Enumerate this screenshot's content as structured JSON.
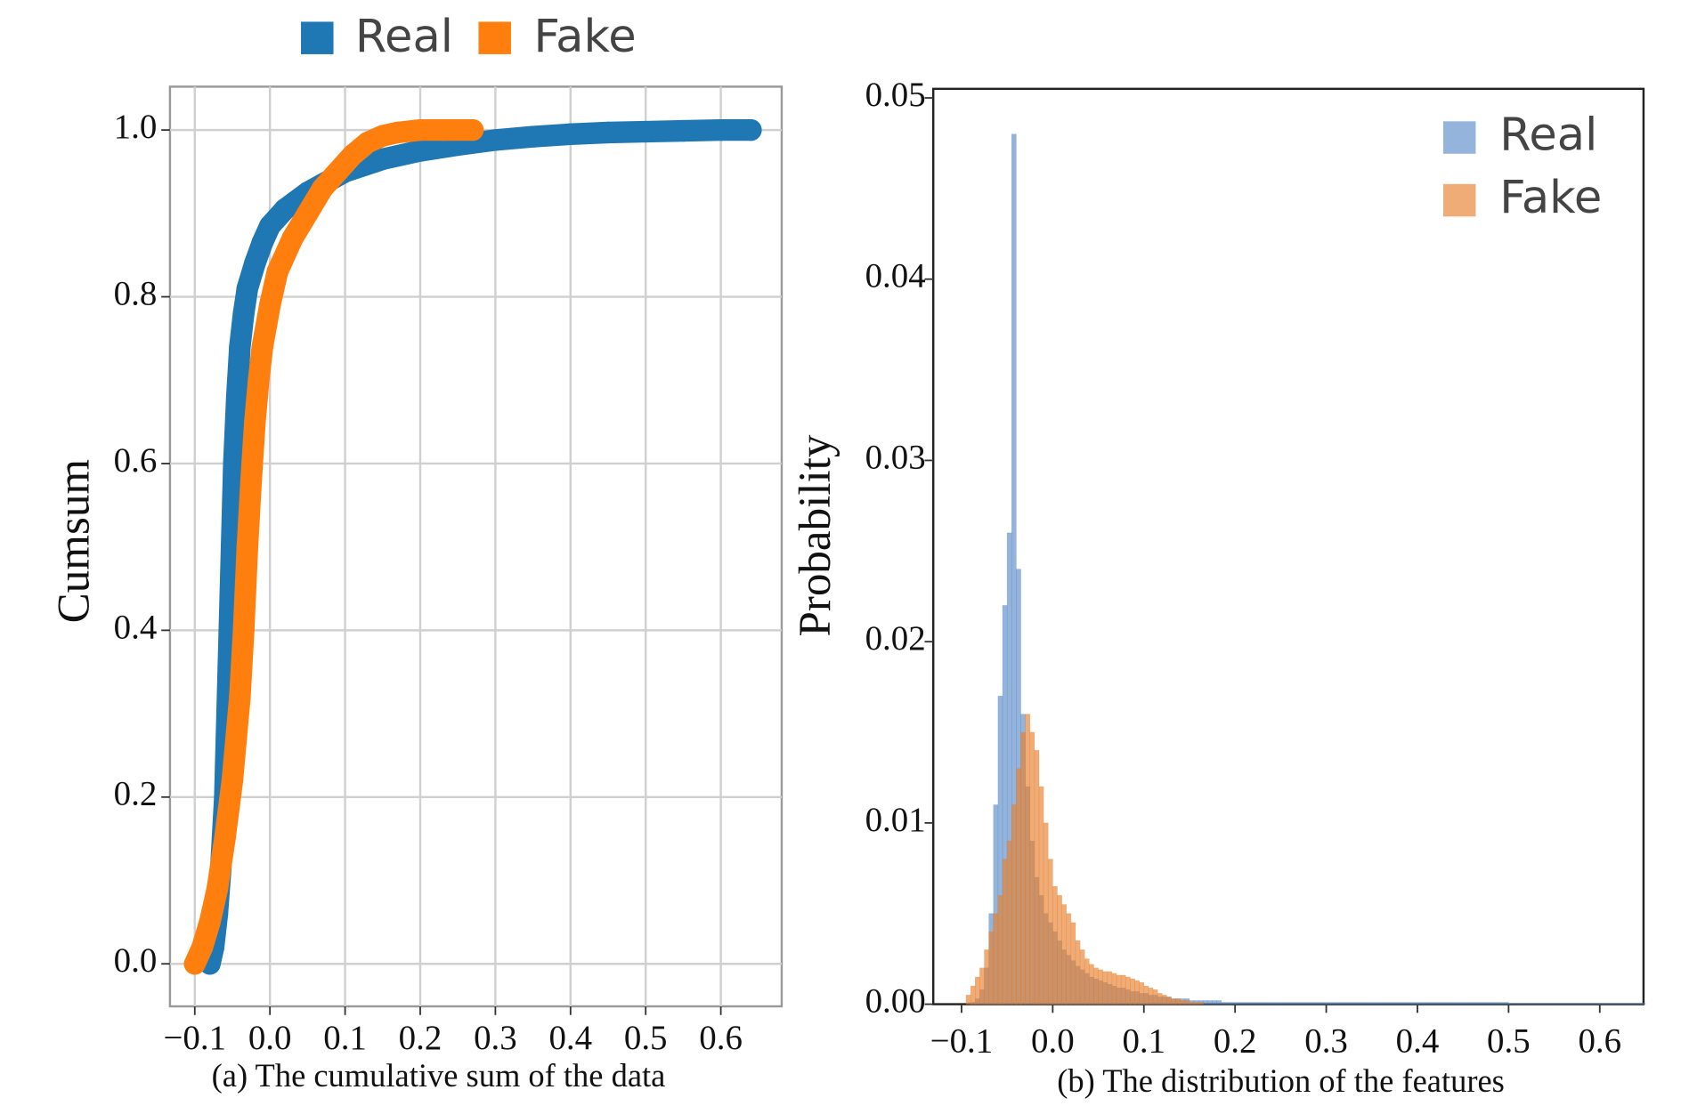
{
  "chart_data": [
    {
      "type": "scatter",
      "y_label": "Cumsum",
      "caption": "(a) The cumulative sum of the data",
      "xlim": [
        -0.133,
        0.681
      ],
      "ylim": [
        -0.051,
        1.052
      ],
      "xticks": [
        {
          "value": -0.1,
          "label": "−0.1"
        },
        {
          "value": 0,
          "label": "0.0"
        },
        0.1,
        0.2,
        0.3,
        0.4,
        0.5,
        0.6
      ],
      "yticks": [
        {
          "value": 0,
          "label": "0.0"
        },
        0.2,
        0.4,
        0.6,
        0.8,
        {
          "value": 1,
          "label": "1.0"
        }
      ],
      "grid": true,
      "legend": "top",
      "series": [
        {
          "name": "Real",
          "color": "#1f77b4",
          "x": [
            -0.08,
            -0.075,
            -0.07,
            -0.065,
            -0.06,
            -0.057,
            -0.054,
            -0.051,
            -0.048,
            -0.044,
            -0.04,
            -0.035,
            -0.03,
            -0.02,
            -0.01,
            0,
            0.02,
            0.05,
            0.08,
            0.1,
            0.15,
            0.2,
            0.25,
            0.3,
            0.35,
            0.4,
            0.45,
            0.5,
            0.55,
            0.6,
            0.64
          ],
          "values": [
            0,
            0.02,
            0.06,
            0.12,
            0.2,
            0.3,
            0.4,
            0.5,
            0.6,
            0.68,
            0.74,
            0.78,
            0.81,
            0.84,
            0.865,
            0.885,
            0.905,
            0.925,
            0.94,
            0.95,
            0.965,
            0.975,
            0.982,
            0.988,
            0.992,
            0.995,
            0.997,
            0.998,
            0.999,
            1,
            1
          ]
        },
        {
          "name": "Fake",
          "color": "#ff7f0e",
          "x": [
            -0.1,
            -0.09,
            -0.08,
            -0.07,
            -0.06,
            -0.05,
            -0.04,
            -0.035,
            -0.03,
            -0.025,
            -0.02,
            -0.015,
            -0.01,
            0,
            0.01,
            0.03,
            0.05,
            0.07,
            0.09,
            0.11,
            0.13,
            0.15,
            0.17,
            0.2,
            0.23,
            0.27
          ],
          "values": [
            0,
            0.02,
            0.05,
            0.09,
            0.15,
            0.22,
            0.32,
            0.4,
            0.5,
            0.58,
            0.65,
            0.7,
            0.74,
            0.79,
            0.83,
            0.87,
            0.9,
            0.93,
            0.95,
            0.97,
            0.985,
            0.993,
            0.997,
            1,
            1,
            1
          ]
        }
      ]
    },
    {
      "type": "histogram",
      "y_label": "Probability",
      "caption": "(b) The distribution of the features",
      "xlim": [
        -0.131,
        0.648
      ],
      "ylim": [
        0,
        0.0505
      ],
      "xticks": [
        {
          "value": -0.1,
          "label": "−0.1"
        },
        {
          "value": 0,
          "label": "0.0"
        },
        0.1,
        0.2,
        0.3,
        0.4,
        0.5,
        0.6
      ],
      "yticks": [
        {
          "value": 0,
          "label": "0.00"
        },
        0.01,
        0.02,
        0.03,
        0.04,
        0.05
      ],
      "grid": false,
      "legend": "upper right",
      "alpha": 0.65,
      "bins": [
        -0.1,
        -0.095,
        -0.09,
        -0.085,
        -0.08,
        -0.075,
        -0.07,
        -0.065,
        -0.06,
        -0.055,
        -0.05,
        -0.045,
        -0.04,
        -0.035,
        -0.03,
        -0.025,
        -0.02,
        -0.015,
        -0.01,
        -0.005,
        0,
        0.005,
        0.01,
        0.015,
        0.02,
        0.025,
        0.03,
        0.035,
        0.04,
        0.045,
        0.05,
        0.055,
        0.06,
        0.065,
        0.07,
        0.075,
        0.08,
        0.085,
        0.09,
        0.095,
        0.1,
        0.105,
        0.11,
        0.115,
        0.12,
        0.125,
        0.13,
        0.135,
        0.14,
        0.145,
        0.15,
        0.155,
        0.16,
        0.165,
        0.17,
        0.175,
        0.18,
        0.185,
        0.19,
        0.195,
        0.2,
        0.25,
        0.3,
        0.35,
        0.4,
        0.45,
        0.5,
        0.55,
        0.6,
        0.65
      ],
      "series": [
        {
          "name": "Real",
          "color": "#5b8cc8",
          "values": [
            0,
            0,
            0.0001,
            0.0003,
            0.0008,
            0.002,
            0.005,
            0.011,
            0.017,
            0.022,
            0.026,
            0.048,
            0.024,
            0.016,
            0.012,
            0.009,
            0.007,
            0.006,
            0.005,
            0.0045,
            0.004,
            0.0035,
            0.003,
            0.0027,
            0.0024,
            0.0021,
            0.0019,
            0.0017,
            0.0015,
            0.0014,
            0.0013,
            0.0012,
            0.0011,
            0.001,
            0.0009,
            0.0009,
            0.0008,
            0.0007,
            0.0007,
            0.0006,
            0.0006,
            0.0005,
            0.0005,
            0.0004,
            0.0004,
            0.0004,
            0.0003,
            0.0003,
            0.0003,
            0.0003,
            0.0002,
            0.0002,
            0.0002,
            0.0002,
            0.0002,
            0.0002,
            0.0002,
            0.0001,
            0.0001,
            0.0001,
            0.0001,
            0.0001,
            0.0001,
            0.0001,
            0.0001,
            0.0001,
            5e-05,
            5e-05,
            5e-05
          ]
        },
        {
          "name": "Fake",
          "color": "#e8802c",
          "values": [
            0,
            0.0005,
            0.001,
            0.0015,
            0.002,
            0.003,
            0.004,
            0.005,
            0.006,
            0.008,
            0.009,
            0.011,
            0.013,
            0.015,
            0.016,
            0.015,
            0.014,
            0.012,
            0.01,
            0.008,
            0.0065,
            0.006,
            0.0055,
            0.005,
            0.0045,
            0.0035,
            0.003,
            0.0025,
            0.0022,
            0.002,
            0.0019,
            0.0018,
            0.0018,
            0.0017,
            0.0016,
            0.0016,
            0.0015,
            0.0014,
            0.0013,
            0.0012,
            0.001,
            0.0009,
            0.0008,
            0.0006,
            0.0005,
            0.0004,
            0.0003,
            0.0003,
            0.0002,
            0.0002,
            0.0001,
            0.0001,
            0.0001,
            0,
            0,
            0,
            0,
            0,
            0,
            0,
            0,
            0,
            0,
            0,
            0,
            0,
            0,
            0,
            0
          ]
        }
      ]
    }
  ]
}
